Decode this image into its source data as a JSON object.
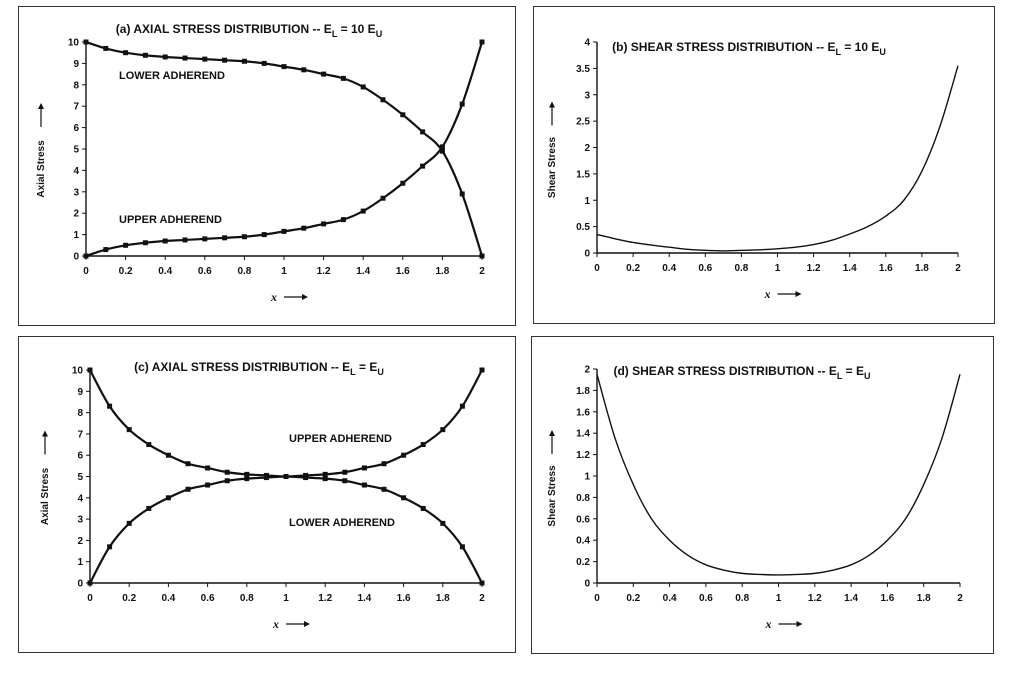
{
  "chart_data": [
    {
      "type": "line",
      "title_parts": {
        "text": "(a) AXIAL STRESS DISTRIBUTION  -- E",
        "sub1": "L",
        "mid": " =  10 E",
        "sub2": "U"
      },
      "xlabel": "x",
      "ylabel": "Axial Stress",
      "xlim": [
        0,
        2
      ],
      "ylim": [
        0,
        10
      ],
      "xticks": [
        "0",
        "0.2",
        "0.4",
        "0.6",
        "0.8",
        "1",
        "1.2",
        "1.4",
        "1.6",
        "1.8",
        "2"
      ],
      "yticks": [
        "0",
        "1",
        "2",
        "3",
        "4",
        "5",
        "6",
        "7",
        "8",
        "9",
        "10"
      ],
      "grid": false,
      "markers": true,
      "series": [
        {
          "name": "LOWER ADHEREND",
          "x": [
            0,
            0.1,
            0.2,
            0.3,
            0.4,
            0.5,
            0.6,
            0.7,
            0.8,
            0.9,
            1.0,
            1.1,
            1.2,
            1.3,
            1.4,
            1.5,
            1.6,
            1.7,
            1.8,
            1.9,
            2.0
          ],
          "values": [
            10,
            9.7,
            9.5,
            9.38,
            9.3,
            9.25,
            9.2,
            9.15,
            9.1,
            9.0,
            8.85,
            8.7,
            8.5,
            8.3,
            7.9,
            7.3,
            6.6,
            5.8,
            4.9,
            2.9,
            0
          ]
        },
        {
          "name": "UPPER ADHEREND",
          "x": [
            0,
            0.1,
            0.2,
            0.3,
            0.4,
            0.5,
            0.6,
            0.7,
            0.8,
            0.9,
            1.0,
            1.1,
            1.2,
            1.3,
            1.4,
            1.5,
            1.6,
            1.7,
            1.8,
            1.9,
            2.0
          ],
          "values": [
            0,
            0.3,
            0.5,
            0.62,
            0.7,
            0.75,
            0.8,
            0.85,
            0.9,
            1.0,
            1.15,
            1.3,
            1.5,
            1.7,
            2.1,
            2.7,
            3.4,
            4.2,
            5.1,
            7.1,
            10
          ]
        }
      ]
    },
    {
      "type": "line",
      "title_parts": {
        "text": "(b) SHEAR STRESS DISTRIBUTION  -- E",
        "sub1": "L",
        "mid": " =  10 E",
        "sub2": "U"
      },
      "xlabel": "x",
      "ylabel": "Shear Stress",
      "xlim": [
        0,
        2
      ],
      "ylim": [
        0,
        4
      ],
      "xticks": [
        "0",
        "0.2",
        "0.4",
        "0.6",
        "0.8",
        "1",
        "1.2",
        "1.4",
        "1.6",
        "1.8",
        "2"
      ],
      "yticks": [
        "0",
        "0.5",
        "1",
        "1.5",
        "2",
        "2.5",
        "3",
        "3.5",
        "4"
      ],
      "grid": false,
      "markers": false,
      "series": [
        {
          "x": [
            0,
            0.1,
            0.2,
            0.3,
            0.4,
            0.5,
            0.6,
            0.7,
            0.8,
            0.9,
            1.0,
            1.1,
            1.2,
            1.3,
            1.4,
            1.5,
            1.6,
            1.7,
            1.8,
            1.9,
            2.0
          ],
          "values": [
            0.35,
            0.27,
            0.2,
            0.15,
            0.11,
            0.07,
            0.05,
            0.04,
            0.05,
            0.06,
            0.08,
            0.11,
            0.16,
            0.24,
            0.36,
            0.5,
            0.7,
            1.0,
            1.55,
            2.4,
            3.55
          ]
        }
      ]
    },
    {
      "type": "line",
      "title_parts": {
        "text": "(c) AXIAL STRESS DISTRIBUTION  --  E",
        "sub1": "L",
        "mid": " = E",
        "sub2": "U"
      },
      "xlabel": "x",
      "ylabel": "Axial Stress",
      "xlim": [
        0,
        2
      ],
      "ylim": [
        0,
        10
      ],
      "xticks": [
        "0",
        "0.2",
        "0.4",
        "0.6",
        "0.8",
        "1",
        "1.2",
        "1.4",
        "1.6",
        "1.8",
        "2"
      ],
      "yticks": [
        "0",
        "1",
        "2",
        "3",
        "4",
        "5",
        "6",
        "7",
        "8",
        "9",
        "10"
      ],
      "grid": false,
      "markers": true,
      "series": [
        {
          "name": "UPPER ADHEREND",
          "x": [
            0,
            0.1,
            0.2,
            0.3,
            0.4,
            0.5,
            0.6,
            0.7,
            0.8,
            0.9,
            1.0,
            1.1,
            1.2,
            1.3,
            1.4,
            1.5,
            1.6,
            1.7,
            1.8,
            1.9,
            2.0
          ],
          "values": [
            10,
            8.3,
            7.2,
            6.5,
            6.0,
            5.6,
            5.4,
            5.2,
            5.1,
            5.05,
            5.0,
            5.05,
            5.1,
            5.2,
            5.4,
            5.6,
            6.0,
            6.5,
            7.2,
            8.3,
            10
          ]
        },
        {
          "name": "LOWER ADHEREND",
          "x": [
            0,
            0.1,
            0.2,
            0.3,
            0.4,
            0.5,
            0.6,
            0.7,
            0.8,
            0.9,
            1.0,
            1.1,
            1.2,
            1.3,
            1.4,
            1.5,
            1.6,
            1.7,
            1.8,
            1.9,
            2.0
          ],
          "values": [
            0,
            1.7,
            2.8,
            3.5,
            4.0,
            4.4,
            4.6,
            4.8,
            4.9,
            4.95,
            5.0,
            4.95,
            4.9,
            4.8,
            4.6,
            4.4,
            4.0,
            3.5,
            2.8,
            1.7,
            0
          ]
        }
      ]
    },
    {
      "type": "line",
      "title_parts": {
        "text": "(d) SHEAR STRESS DISTRIBUTION  -- E",
        "sub1": "L",
        "mid": " =  E",
        "sub2": "U"
      },
      "xlabel": "x",
      "ylabel": "Shear Stress",
      "xlim": [
        0,
        2
      ],
      "ylim": [
        0,
        2
      ],
      "xticks": [
        "0",
        "0.2",
        "0.4",
        "0.6",
        "0.8",
        "1",
        "1.2",
        "1.4",
        "1.6",
        "1.8",
        "2"
      ],
      "yticks": [
        "0",
        "0.2",
        "0.4",
        "0.6",
        "0.8",
        "1",
        "1.2",
        "1.4",
        "1.6",
        "1.8",
        "2"
      ],
      "grid": false,
      "markers": false,
      "series": [
        {
          "x": [
            0,
            0.1,
            0.2,
            0.3,
            0.4,
            0.5,
            0.6,
            0.7,
            0.8,
            0.9,
            1.0,
            1.1,
            1.2,
            1.3,
            1.4,
            1.5,
            1.6,
            1.7,
            1.8,
            1.9,
            2.0
          ],
          "values": [
            1.95,
            1.35,
            0.92,
            0.6,
            0.4,
            0.26,
            0.17,
            0.12,
            0.09,
            0.08,
            0.075,
            0.08,
            0.09,
            0.12,
            0.17,
            0.26,
            0.4,
            0.6,
            0.92,
            1.35,
            1.95
          ]
        }
      ]
    }
  ]
}
